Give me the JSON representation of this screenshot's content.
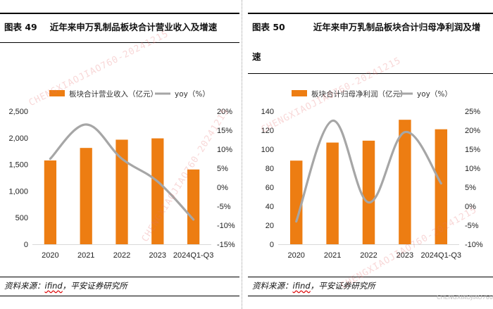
{
  "charts": [
    {
      "fig_no": "图表 49",
      "fig_title": "近年来申万乳制品板块合计营业收入及增速",
      "source_label": "资料来源：",
      "source_name": "ifind",
      "source_rest": "，平安证券研究所",
      "chart_data": {
        "type": "bar",
        "categories": [
          "2020",
          "2021",
          "2022",
          "2023",
          "2024Q1-Q3"
        ],
        "series": [
          {
            "name": "板块合计营业收入（亿元）",
            "type": "bar",
            "axis": "left",
            "values": [
              1575,
              1810,
              1965,
              1990,
              1405
            ],
            "color": "#ed7d12"
          },
          {
            "name": "yoy（%）",
            "type": "line",
            "axis": "right",
            "values": [
              7.5,
              16.5,
              7.5,
              1.5,
              -8.5
            ],
            "color": "#a6a6a6"
          }
        ],
        "left_axis": {
          "min": 0,
          "max": 2500,
          "step": 500,
          "ticks": [
            "0",
            "500",
            "1,000",
            "1,500",
            "2,000",
            "2,500"
          ]
        },
        "right_axis": {
          "min": -15,
          "max": 20,
          "step": 5,
          "ticks": [
            "-15%",
            "-10%",
            "-5%",
            "0%",
            "5%",
            "10%",
            "15%",
            "20%"
          ]
        },
        "legend_position": "top"
      }
    },
    {
      "fig_no": "图表 50",
      "fig_title": "近年来申万乳制品板块合计归母净利润及增速",
      "source_label": "资料来源：",
      "source_name": "ifind",
      "source_rest": "，平安证券研究所",
      "chart_data": {
        "type": "bar",
        "categories": [
          "2020",
          "2021",
          "2022",
          "2023",
          "2024Q1-Q3"
        ],
        "series": [
          {
            "name": "板块合计归母净利润（亿元）",
            "type": "bar",
            "axis": "left",
            "values": [
              88,
              107,
              109,
              131,
              121
            ],
            "color": "#ed7d12"
          },
          {
            "name": "yoy（%）",
            "type": "line",
            "axis": "right",
            "values": [
              -4,
              22.5,
              1,
              19.5,
              6
            ],
            "color": "#a6a6a6"
          }
        ],
        "left_axis": {
          "min": 0,
          "max": 140,
          "step": 20,
          "ticks": [
            "0",
            "20",
            "40",
            "60",
            "80",
            "100",
            "120",
            "140"
          ]
        },
        "right_axis": {
          "min": -10,
          "max": 25,
          "step": 5,
          "ticks": [
            "-10%",
            "-5%",
            "0%",
            "5%",
            "10%",
            "15%",
            "20%",
            "25%"
          ]
        },
        "legend_position": "top"
      }
    }
  ],
  "watermark": "CHENGXIAOJIAO760-20241215",
  "corner_mark": "CHENGXIAOJIAO760"
}
